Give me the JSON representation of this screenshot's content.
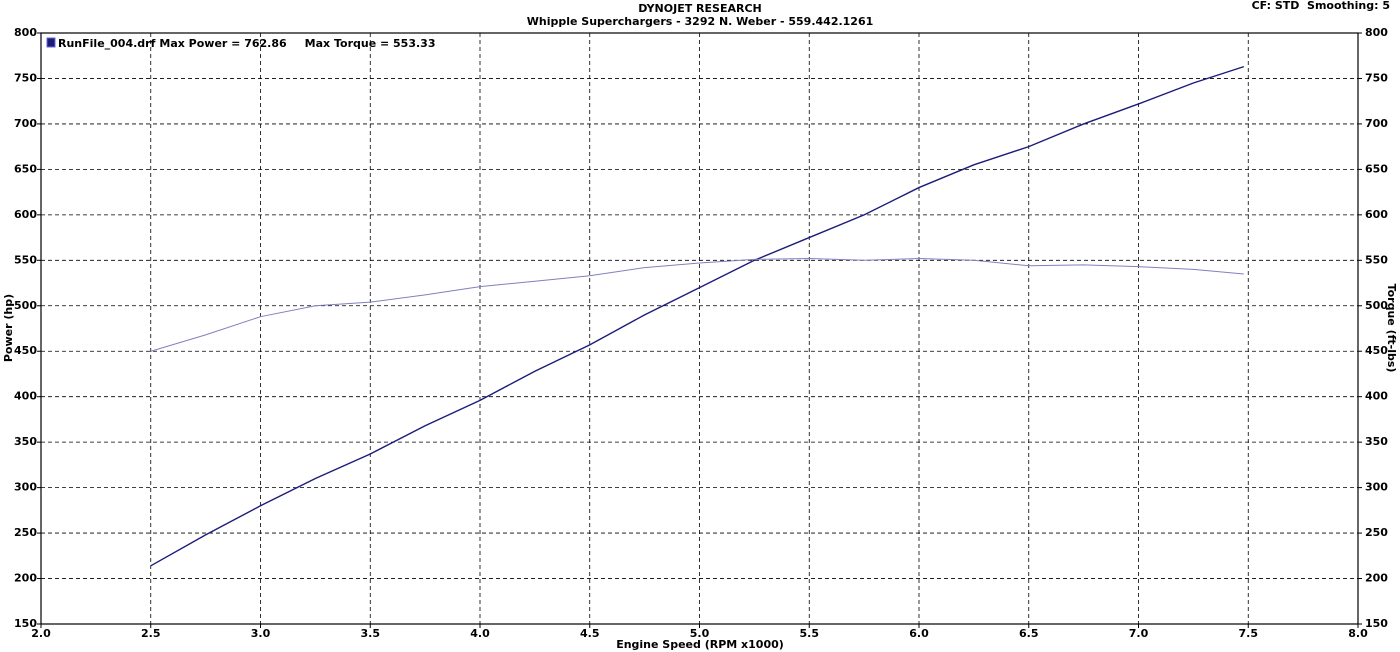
{
  "chart_data": {
    "type": "line",
    "title": "DYNOJET RESEARCH",
    "subtitle": "Whipple Superchargers - 3292 N. Weber - 559.442.1261",
    "note": "CF: STD  Smoothing: 5",
    "xlabel": "Engine Speed (RPM x1000)",
    "ylabel": "Power (hp)",
    "y2label": "Torque (ft-lbs)",
    "annotations": [
      "Max Power = 762.86",
      "Max Torque = 553.33"
    ],
    "grid": true,
    "xlim": [
      2,
      8
    ],
    "xticks": [
      {
        "value": 2,
        "label": "2.0"
      },
      2.5,
      {
        "value": 3,
        "label": "3.0"
      },
      3.5,
      {
        "value": 4,
        "label": "4.0"
      },
      4.5,
      {
        "value": 5,
        "label": "5.0"
      },
      5.5,
      {
        "value": 6,
        "label": "6.0"
      },
      6.5,
      {
        "value": 7,
        "label": "7.0"
      },
      7.5,
      {
        "value": 8,
        "label": "8.0"
      }
    ],
    "ylim": [
      150,
      800
    ],
    "yticks": [
      150,
      200,
      250,
      300,
      350,
      400,
      450,
      500,
      550,
      600,
      650,
      700,
      750,
      800
    ],
    "y2lim": [
      150,
      800
    ],
    "y2ticks": [
      150,
      200,
      250,
      300,
      350,
      400,
      450,
      500,
      550,
      600,
      650,
      700,
      750,
      800
    ],
    "x": [
      2.5,
      2.75,
      3.0,
      3.25,
      3.5,
      3.75,
      4.0,
      4.25,
      4.5,
      4.75,
      5.0,
      5.25,
      5.5,
      5.75,
      6.0,
      6.25,
      6.5,
      6.75,
      7.0,
      7.25,
      7.48
    ],
    "series": [
      {
        "name": "RunFile_004.drf",
        "color": "#1c1c7a",
        "values": [
          214,
          248,
          280,
          310,
          337,
          368,
          396,
          428,
          457,
          490,
          520,
          550,
          575,
          600,
          630,
          655,
          675,
          700,
          722,
          745,
          763
        ]
      },
      {
        "color": "#8080c0",
        "axis": "y2",
        "values": [
          450,
          468,
          488,
          500,
          504,
          512,
          521,
          527,
          533,
          542,
          547,
          551,
          552,
          550,
          552,
          550,
          544,
          545,
          543,
          540,
          535
        ]
      }
    ]
  }
}
